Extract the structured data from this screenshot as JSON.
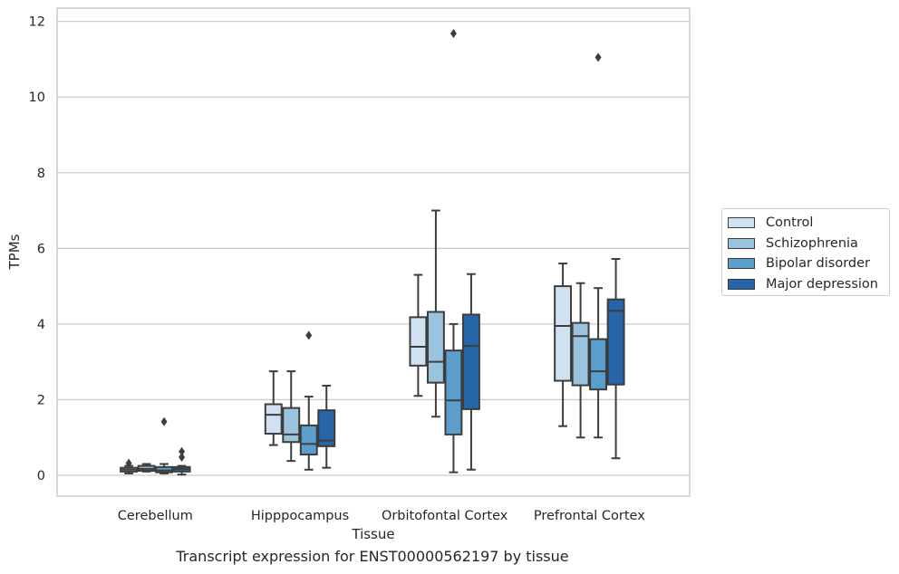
{
  "chart_data": {
    "type": "box",
    "title": "Transcript expression for ENST00000562197 by tissue",
    "xlabel": "Tissue",
    "ylabel": "TPMs",
    "ylim": [
      -0.55,
      12.35
    ],
    "yticks": [
      0,
      2,
      4,
      6,
      8,
      10,
      12
    ],
    "grid": "horizontal",
    "legend_position": "right",
    "categories": [
      "Cerebellum",
      "Hipppocampus",
      "Orbitofontal Cortex",
      "Prefrontal Cortex"
    ],
    "series": [
      {
        "name": "Control",
        "color": "#d0e1f2",
        "boxes": [
          {
            "whislo": 0.05,
            "q1": 0.1,
            "med": 0.15,
            "q3": 0.2,
            "whishi": 0.25,
            "fliers": [
              0.32
            ]
          },
          {
            "whislo": 0.8,
            "q1": 1.1,
            "med": 1.6,
            "q3": 1.88,
            "whishi": 2.75,
            "fliers": []
          },
          {
            "whislo": 2.1,
            "q1": 2.9,
            "med": 3.4,
            "q3": 4.18,
            "whishi": 5.3,
            "fliers": []
          },
          {
            "whislo": 1.3,
            "q1": 2.5,
            "med": 3.95,
            "q3": 5.0,
            "whishi": 5.6,
            "fliers": []
          }
        ]
      },
      {
        "name": "Schizophrenia",
        "color": "#9ac3de",
        "boxes": [
          {
            "whislo": 0.1,
            "q1": 0.12,
            "med": 0.17,
            "q3": 0.25,
            "whishi": 0.3,
            "fliers": []
          },
          {
            "whislo": 0.38,
            "q1": 0.88,
            "med": 1.08,
            "q3": 1.78,
            "whishi": 2.75,
            "fliers": []
          },
          {
            "whislo": 1.55,
            "q1": 2.45,
            "med": 3.0,
            "q3": 4.32,
            "whishi": 7.0,
            "fliers": []
          },
          {
            "whislo": 1.0,
            "q1": 2.38,
            "med": 3.68,
            "q3": 4.03,
            "whishi": 5.08,
            "fliers": []
          }
        ]
      },
      {
        "name": "Bipolar disorder",
        "color": "#5b9ecb",
        "boxes": [
          {
            "whislo": 0.05,
            "q1": 0.08,
            "med": 0.13,
            "q3": 0.22,
            "whishi": 0.3,
            "fliers": [
              1.42
            ]
          },
          {
            "whislo": 0.15,
            "q1": 0.55,
            "med": 0.83,
            "q3": 1.32,
            "whishi": 2.08,
            "fliers": [
              3.7
            ]
          },
          {
            "whislo": 0.08,
            "q1": 1.08,
            "med": 1.98,
            "q3": 3.3,
            "whishi": 4.0,
            "fliers": [
              11.68
            ]
          },
          {
            "whislo": 1.0,
            "q1": 2.27,
            "med": 2.75,
            "q3": 3.6,
            "whishi": 4.95,
            "fliers": [
              11.05
            ]
          }
        ]
      },
      {
        "name": "Major depression",
        "color": "#2565a8",
        "boxes": [
          {
            "whislo": 0.02,
            "q1": 0.1,
            "med": 0.17,
            "q3": 0.22,
            "whishi": 0.25,
            "fliers": [
              0.48,
              0.63
            ]
          },
          {
            "whislo": 0.2,
            "q1": 0.77,
            "med": 0.92,
            "q3": 1.72,
            "whishi": 2.37,
            "fliers": []
          },
          {
            "whislo": 0.15,
            "q1": 1.75,
            "med": 3.42,
            "q3": 4.25,
            "whishi": 5.32,
            "fliers": []
          },
          {
            "whislo": 0.45,
            "q1": 2.4,
            "med": 4.35,
            "q3": 4.65,
            "whishi": 5.72,
            "fliers": []
          }
        ]
      }
    ]
  }
}
